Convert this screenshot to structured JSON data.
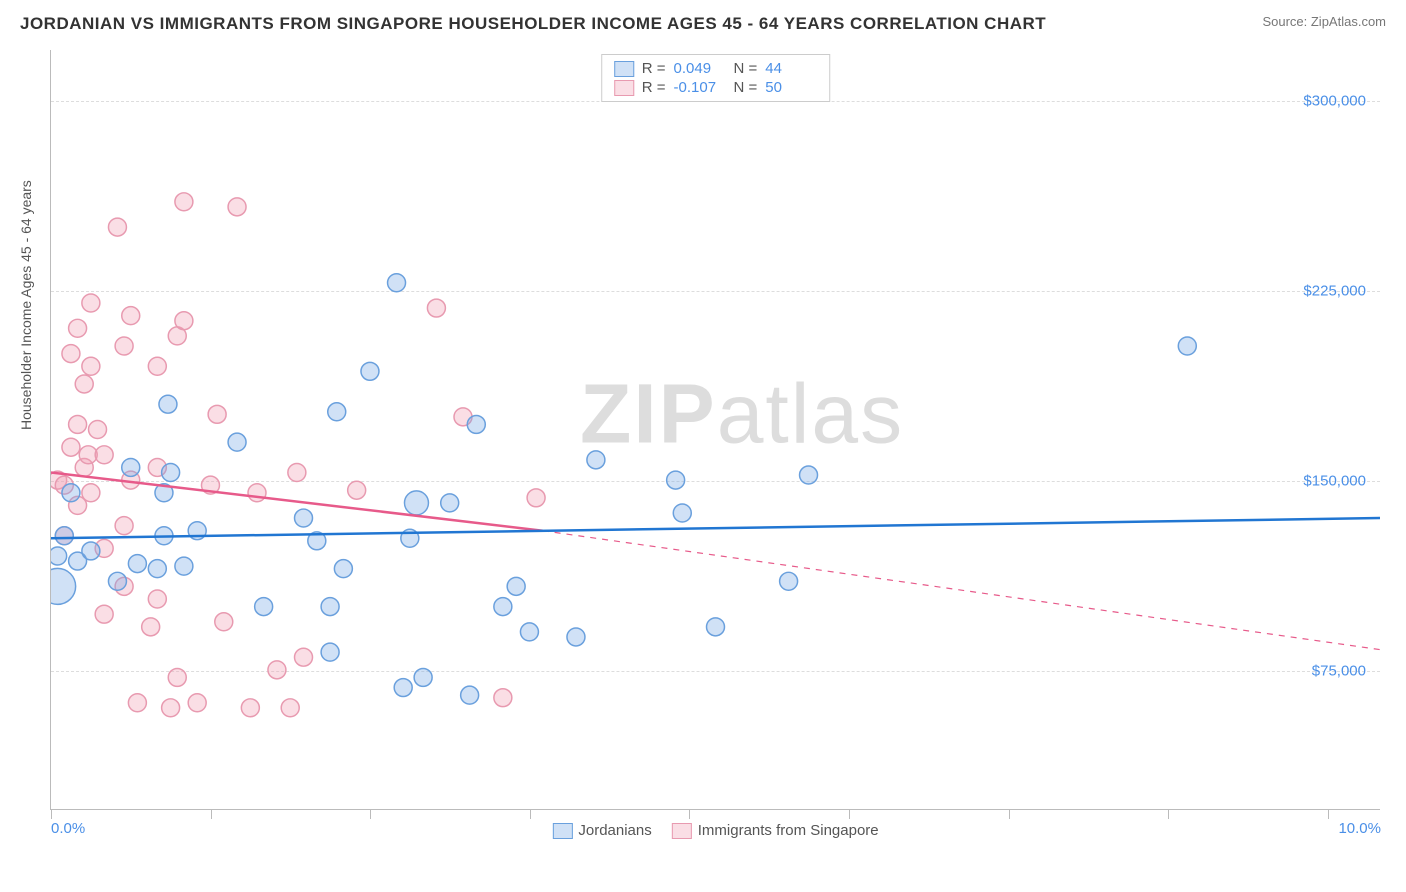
{
  "header": {
    "title": "JORDANIAN VS IMMIGRANTS FROM SINGAPORE HOUSEHOLDER INCOME AGES 45 - 64 YEARS CORRELATION CHART",
    "source": "Source: ZipAtlas.com"
  },
  "chart": {
    "type": "scatter",
    "ylabel": "Householder Income Ages 45 - 64 years",
    "watermark_a": "ZIP",
    "watermark_b": "atlas",
    "xlim": [
      0,
      10
    ],
    "ylim": [
      20000,
      320000
    ],
    "x_ticks": [
      0,
      1.2,
      2.4,
      3.6,
      4.8,
      6.0,
      7.2,
      8.4,
      9.6
    ],
    "x_tick_labels": {
      "0": "0.0%",
      "10": "10.0%"
    },
    "y_gridlines": [
      75000,
      150000,
      225000,
      300000
    ],
    "y_tick_labels": {
      "75000": "$75,000",
      "150000": "$150,000",
      "225000": "$225,000",
      "300000": "$300,000"
    },
    "background_color": "#ffffff",
    "grid_color": "#dddddd",
    "axis_color": "#bbbbbb",
    "tick_label_color": "#4a8fe7",
    "series": [
      {
        "name": "Jordanians",
        "color_fill": "rgba(120,170,230,0.35)",
        "color_stroke": "#6aa0dd",
        "line_color": "#2176d2",
        "marker_radius": 9,
        "R": "0.049",
        "N": "44",
        "trend": {
          "x1": 0,
          "y1": 127000,
          "x2": 10,
          "y2": 135000,
          "dashed": false
        },
        "points": [
          {
            "x": 0.05,
            "y": 108000,
            "r": 18
          },
          {
            "x": 0.05,
            "y": 120000
          },
          {
            "x": 0.1,
            "y": 128000
          },
          {
            "x": 0.15,
            "y": 145000
          },
          {
            "x": 0.2,
            "y": 118000
          },
          {
            "x": 0.3,
            "y": 122000
          },
          {
            "x": 0.5,
            "y": 110000
          },
          {
            "x": 0.6,
            "y": 155000
          },
          {
            "x": 0.65,
            "y": 117000
          },
          {
            "x": 0.8,
            "y": 115000
          },
          {
            "x": 0.85,
            "y": 128000
          },
          {
            "x": 0.85,
            "y": 145000
          },
          {
            "x": 0.88,
            "y": 180000
          },
          {
            "x": 0.9,
            "y": 153000
          },
          {
            "x": 1.0,
            "y": 116000
          },
          {
            "x": 1.1,
            "y": 130000
          },
          {
            "x": 1.4,
            "y": 165000
          },
          {
            "x": 1.6,
            "y": 100000
          },
          {
            "x": 1.9,
            "y": 135000
          },
          {
            "x": 2.0,
            "y": 126000
          },
          {
            "x": 2.1,
            "y": 82000
          },
          {
            "x": 2.1,
            "y": 100000
          },
          {
            "x": 2.15,
            "y": 177000
          },
          {
            "x": 2.2,
            "y": 115000
          },
          {
            "x": 2.4,
            "y": 193000
          },
          {
            "x": 2.6,
            "y": 228000
          },
          {
            "x": 2.65,
            "y": 68000
          },
          {
            "x": 2.7,
            "y": 127000
          },
          {
            "x": 2.75,
            "y": 141000,
            "r": 12
          },
          {
            "x": 2.8,
            "y": 72000
          },
          {
            "x": 3.0,
            "y": 141000
          },
          {
            "x": 3.15,
            "y": 65000
          },
          {
            "x": 3.2,
            "y": 172000
          },
          {
            "x": 3.4,
            "y": 100000
          },
          {
            "x": 3.5,
            "y": 108000
          },
          {
            "x": 3.6,
            "y": 90000
          },
          {
            "x": 3.95,
            "y": 88000
          },
          {
            "x": 4.1,
            "y": 158000
          },
          {
            "x": 4.7,
            "y": 150000
          },
          {
            "x": 4.75,
            "y": 137000
          },
          {
            "x": 5.0,
            "y": 92000
          },
          {
            "x": 5.55,
            "y": 110000
          },
          {
            "x": 5.7,
            "y": 152000
          },
          {
            "x": 8.55,
            "y": 203000
          }
        ]
      },
      {
        "name": "Immigants from Singapore",
        "label": "Immigrants from Singapore",
        "color_fill": "rgba(240,160,180,0.35)",
        "color_stroke": "#e89ab0",
        "line_color": "#e75a8a",
        "marker_radius": 9,
        "R": "-0.107",
        "N": "50",
        "trend_solid": {
          "x1": 0,
          "y1": 153000,
          "x2": 3.7,
          "y2": 130000
        },
        "trend_dashed": {
          "x1": 3.7,
          "y1": 130000,
          "x2": 10,
          "y2": 83000
        },
        "points": [
          {
            "x": 0.05,
            "y": 150000
          },
          {
            "x": 0.1,
            "y": 128000
          },
          {
            "x": 0.1,
            "y": 148000
          },
          {
            "x": 0.15,
            "y": 163000
          },
          {
            "x": 0.15,
            "y": 200000
          },
          {
            "x": 0.2,
            "y": 140000
          },
          {
            "x": 0.2,
            "y": 172000
          },
          {
            "x": 0.2,
            "y": 210000
          },
          {
            "x": 0.25,
            "y": 155000
          },
          {
            "x": 0.25,
            "y": 188000
          },
          {
            "x": 0.28,
            "y": 160000
          },
          {
            "x": 0.3,
            "y": 145000
          },
          {
            "x": 0.3,
            "y": 195000
          },
          {
            "x": 0.3,
            "y": 220000
          },
          {
            "x": 0.35,
            "y": 170000
          },
          {
            "x": 0.4,
            "y": 97000
          },
          {
            "x": 0.4,
            "y": 123000
          },
          {
            "x": 0.4,
            "y": 160000
          },
          {
            "x": 0.5,
            "y": 250000
          },
          {
            "x": 0.55,
            "y": 108000
          },
          {
            "x": 0.55,
            "y": 132000
          },
          {
            "x": 0.55,
            "y": 203000
          },
          {
            "x": 0.6,
            "y": 150000
          },
          {
            "x": 0.6,
            "y": 215000
          },
          {
            "x": 0.65,
            "y": 62000
          },
          {
            "x": 0.75,
            "y": 92000
          },
          {
            "x": 0.8,
            "y": 103000
          },
          {
            "x": 0.8,
            "y": 155000
          },
          {
            "x": 0.8,
            "y": 195000
          },
          {
            "x": 0.9,
            "y": 60000
          },
          {
            "x": 0.95,
            "y": 72000
          },
          {
            "x": 0.95,
            "y": 207000
          },
          {
            "x": 1.0,
            "y": 213000
          },
          {
            "x": 1.0,
            "y": 260000
          },
          {
            "x": 1.1,
            "y": 62000
          },
          {
            "x": 1.2,
            "y": 148000
          },
          {
            "x": 1.25,
            "y": 176000
          },
          {
            "x": 1.3,
            "y": 94000
          },
          {
            "x": 1.4,
            "y": 258000
          },
          {
            "x": 1.5,
            "y": 60000
          },
          {
            "x": 1.55,
            "y": 145000
          },
          {
            "x": 1.7,
            "y": 75000
          },
          {
            "x": 1.8,
            "y": 60000
          },
          {
            "x": 1.85,
            "y": 153000
          },
          {
            "x": 1.9,
            "y": 80000
          },
          {
            "x": 2.3,
            "y": 146000
          },
          {
            "x": 2.9,
            "y": 218000
          },
          {
            "x": 3.1,
            "y": 175000
          },
          {
            "x": 3.4,
            "y": 64000
          },
          {
            "x": 3.65,
            "y": 143000
          }
        ]
      }
    ]
  }
}
